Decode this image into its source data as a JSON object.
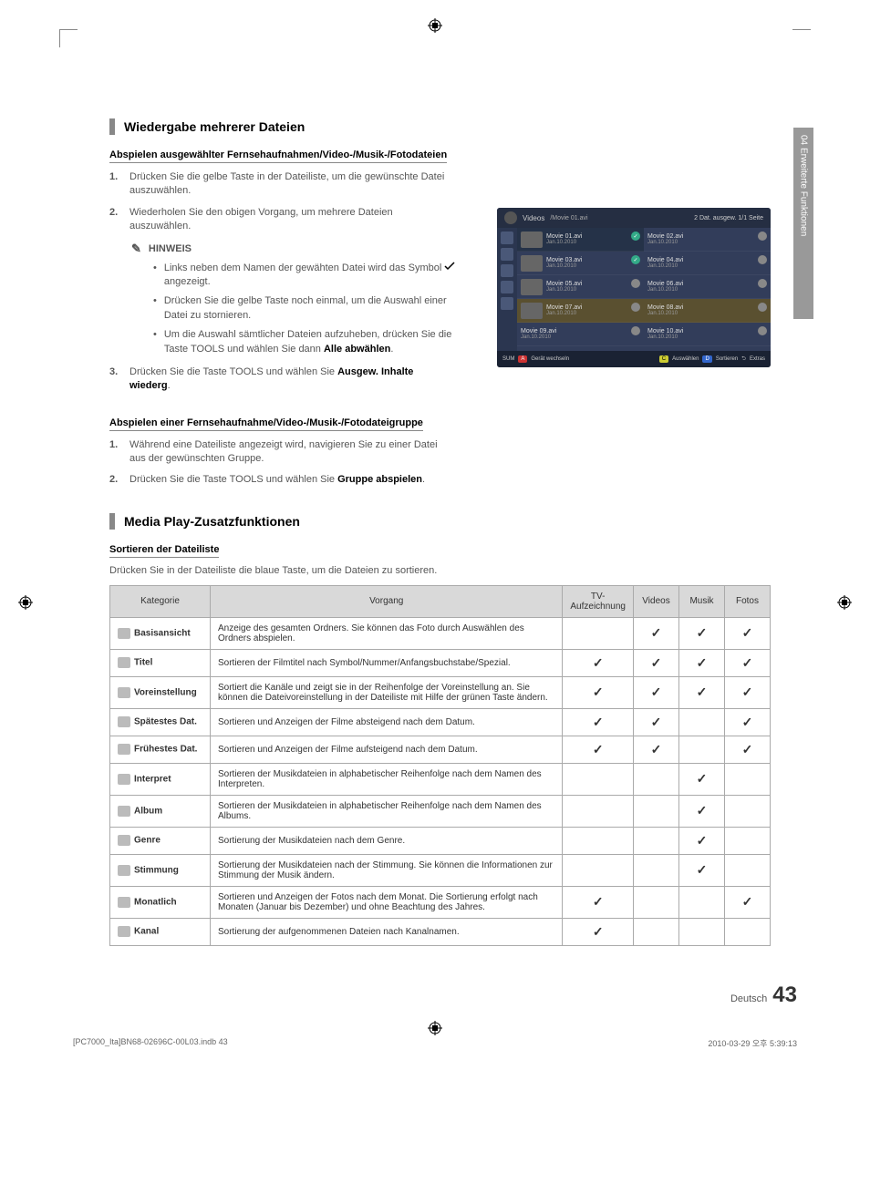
{
  "side_tab": {
    "number": "04",
    "label": "Erweiterte Funktionen"
  },
  "section1": {
    "title": "Wiedergabe mehrerer Dateien",
    "sub1": {
      "title": "Abspielen ausgewählter Fernsehaufnahmen/Video-/Musik-/Fotodateien",
      "step1": "Drücken Sie die gelbe Taste in der Dateiliste, um die gewünschte Datei auszuwählen.",
      "step2": "Wiederholen Sie den obigen Vorgang, um mehrere Dateien auszuwählen.",
      "hinweis_label": "HINWEIS",
      "bullet1_a": "Links neben dem Namen der gewähten Datei wird das Symbol",
      "bullet1_b": "angezeigt.",
      "bullet2": "Drücken Sie die gelbe Taste noch einmal, um die Auswahl einer Datei zu stornieren.",
      "bullet3_a": "Um die Auswahl sämtlicher Dateien aufzuheben, drücken Sie die Taste ",
      "bullet3_tools": "TOOLS",
      "bullet3_b": " und wählen Sie dann ",
      "bullet3_bold": "Alle abwählen",
      "bullet3_c": ".",
      "step3_a": "Drücken Sie die Taste ",
      "step3_tools": "TOOLS",
      "step3_b": " und wählen Sie ",
      "step3_bold": "Ausgew. Inhalte wiederg",
      "step3_c": "."
    },
    "sub2": {
      "title": "Abspielen einer Fernsehaufnahme/Video-/Musik-/Fotodateigruppe",
      "step1": "Während eine Dateiliste angezeigt wird, navigieren Sie zu einer Datei aus der gewünschten Gruppe.",
      "step2_a": "Drücken Sie die Taste ",
      "step2_tools": "TOOLS",
      "step2_b": " und wählen Sie ",
      "step2_bold": "Gruppe abspielen",
      "step2_c": "."
    }
  },
  "section2": {
    "title": "Media Play-Zusatzfunktionen",
    "sub_title": "Sortieren der Dateiliste",
    "intro": "Drücken Sie in der Dateiliste die blaue Taste, um die Dateien zu sortieren."
  },
  "media_window": {
    "header_label": "Videos",
    "path": "/Movie 01.avi",
    "status": "2 Dat. ausgew.   1/1 Seite",
    "items": [
      {
        "name": "Movie 01.avi",
        "date": "Jan.10.2010",
        "thumb": true,
        "checked": true,
        "sel": true
      },
      {
        "name": "Movie 02.avi",
        "date": "Jan.10.2010",
        "thumb": false,
        "checked": false
      },
      {
        "name": "Movie 03.avi",
        "date": "Jan.10.2010",
        "thumb": true,
        "checked": true
      },
      {
        "name": "Movie 04.avi",
        "date": "Jan.10.2010",
        "thumb": false,
        "checked": false
      },
      {
        "name": "Movie 05.avi",
        "date": "Jan.10.2010",
        "thumb": true,
        "checked": false
      },
      {
        "name": "Movie 06.avi",
        "date": "Jan.10.2010",
        "thumb": false,
        "checked": false
      },
      {
        "name": "Movie 07.avi",
        "date": "Jan.10.2010",
        "thumb": true,
        "checked": false,
        "highlight": true
      },
      {
        "name": "Movie 08.avi",
        "date": "Jan.10.2010",
        "thumb": false,
        "checked": false,
        "highlight": true
      },
      {
        "name": "Movie 09.avi",
        "date": "Jan.10.2010",
        "thumb": false,
        "checked": false
      },
      {
        "name": "Movie 10.avi",
        "date": "Jan.10.2010",
        "thumb": false,
        "checked": false
      }
    ],
    "footer": {
      "left1": "SUM",
      "left2": "Gerät wechseln",
      "btn_a": "A",
      "sel": "Auswählen",
      "sort": "Sortieren",
      "extras": "Extras"
    }
  },
  "table": {
    "headers": {
      "category": "Kategorie",
      "operation": "Vorgang",
      "tv": "TV-Aufzeichnung",
      "videos": "Videos",
      "music": "Musik",
      "photos": "Fotos"
    },
    "rows": [
      {
        "cat": "Basisansicht",
        "op": "Anzeige des gesamten Ordners. Sie können das Foto durch Auswählen des Ordners abspielen.",
        "tv": false,
        "vid": true,
        "mus": true,
        "pho": true
      },
      {
        "cat": "Titel",
        "op": "Sortieren der Filmtitel nach Symbol/Nummer/Anfangsbuchstabe/Spezial.",
        "tv": true,
        "vid": true,
        "mus": true,
        "pho": true
      },
      {
        "cat": "Voreinstellung",
        "op": "Sortiert die Kanäle und zeigt sie in der Reihenfolge der Voreinstellung an. Sie können die Dateivoreinstellung in der Dateiliste mit Hilfe der grünen Taste ändern.",
        "tv": true,
        "vid": true,
        "mus": true,
        "pho": true
      },
      {
        "cat": "Spätestes Dat.",
        "op": "Sortieren und Anzeigen der Filme absteigend nach dem Datum.",
        "tv": true,
        "vid": true,
        "mus": false,
        "pho": true
      },
      {
        "cat": "Frühestes Dat.",
        "op": "Sortieren und Anzeigen der Filme aufsteigend nach dem Datum.",
        "tv": true,
        "vid": true,
        "mus": false,
        "pho": true
      },
      {
        "cat": "Interpret",
        "op": "Sortieren der Musikdateien in alphabetischer Reihenfolge nach dem Namen des Interpreten.",
        "tv": false,
        "vid": false,
        "mus": true,
        "pho": false
      },
      {
        "cat": "Album",
        "op": "Sortieren der Musikdateien in alphabetischer Reihenfolge nach dem Namen des Albums.",
        "tv": false,
        "vid": false,
        "mus": true,
        "pho": false
      },
      {
        "cat": "Genre",
        "op": "Sortierung der Musikdateien nach dem Genre.",
        "tv": false,
        "vid": false,
        "mus": true,
        "pho": false
      },
      {
        "cat": "Stimmung",
        "op": "Sortierung der Musikdateien nach der Stimmung. Sie können die Informationen zur Stimmung der Musik ändern.",
        "tv": false,
        "vid": false,
        "mus": true,
        "pho": false
      },
      {
        "cat": "Monatlich",
        "op": "Sortieren und Anzeigen der Fotos nach dem Monat. Die Sortierung erfolgt nach Monaten (Januar bis Dezember) und ohne Beachtung des Jahres.",
        "tv": true,
        "vid": false,
        "mus": false,
        "pho": true
      },
      {
        "cat": "Kanal",
        "op": "Sortierung der aufgenommenen Dateien nach Kanalnamen.",
        "tv": true,
        "vid": false,
        "mus": false,
        "pho": false
      }
    ]
  },
  "footer": {
    "lang": "Deutsch",
    "page": "43",
    "print_left": "[PC7000_Ita]BN68-02696C-00L03.indb   43",
    "print_right": "2010-03-29   오후 5:39:13"
  }
}
